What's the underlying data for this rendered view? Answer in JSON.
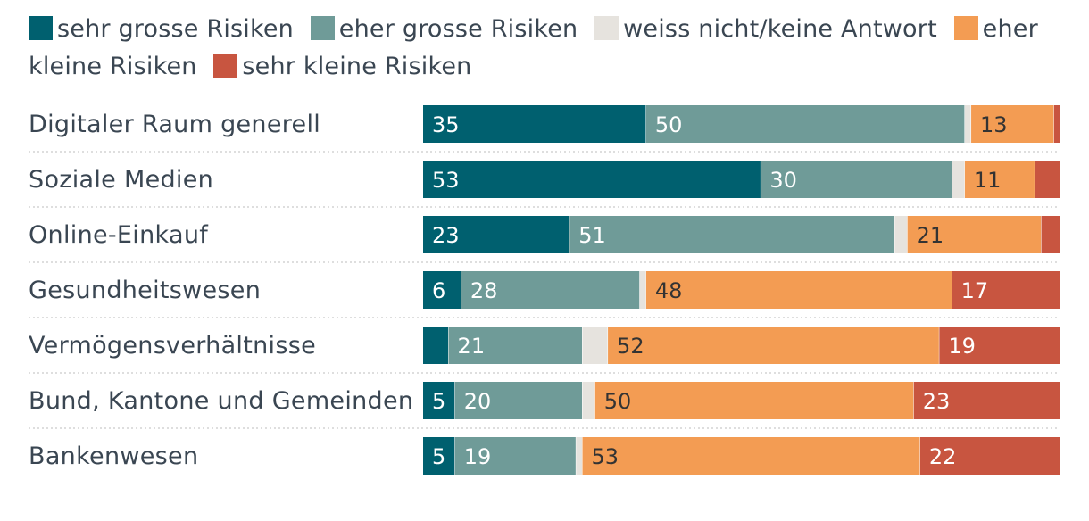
{
  "chart_data": {
    "type": "bar",
    "orientation": "horizontal",
    "stacked": true,
    "legend_position": "top",
    "categories": [
      "Digitaler Raum generell",
      "Soziale Medien",
      "Online-Einkauf",
      "Gesundheitswesen",
      "Vermögensverhältnisse",
      "Bund, Kantone und Gemeinden",
      "Bankenwesen"
    ],
    "series": [
      {
        "name": "sehr grosse Risiken",
        "color": "#00606f",
        "values": [
          35,
          53,
          23,
          6,
          4,
          5,
          5
        ],
        "labels": [
          "35",
          "53",
          "23",
          "6",
          "",
          "5",
          "5"
        ]
      },
      {
        "name": "eher grosse Risiken",
        "color": "#6f9b98",
        "values": [
          50,
          30,
          51,
          28,
          21,
          20,
          19
        ],
        "labels": [
          "50",
          "30",
          "51",
          "28",
          "21",
          "20",
          "19"
        ]
      },
      {
        "name": "weiss nicht/keine Antwort",
        "color": "#e6e3de",
        "values": [
          1,
          2,
          2,
          1,
          4,
          2,
          1
        ],
        "labels": [
          "",
          "",
          "",
          "",
          "",
          "",
          ""
        ]
      },
      {
        "name": "eher kleine Risiken",
        "color": "#f39c53",
        "values": [
          13,
          11,
          21,
          48,
          52,
          50,
          53
        ],
        "labels": [
          "13",
          "11",
          "21",
          "48",
          "52",
          "50",
          "53"
        ]
      },
      {
        "name": "sehr kleine Risiken",
        "color": "#c85540",
        "values": [
          1,
          4,
          3,
          17,
          19,
          23,
          22
        ],
        "labels": [
          "",
          "",
          "",
          "17",
          "19",
          "23",
          "22"
        ]
      }
    ],
    "xlim": [
      0,
      100
    ],
    "title": "",
    "xlabel": "",
    "ylabel": ""
  }
}
